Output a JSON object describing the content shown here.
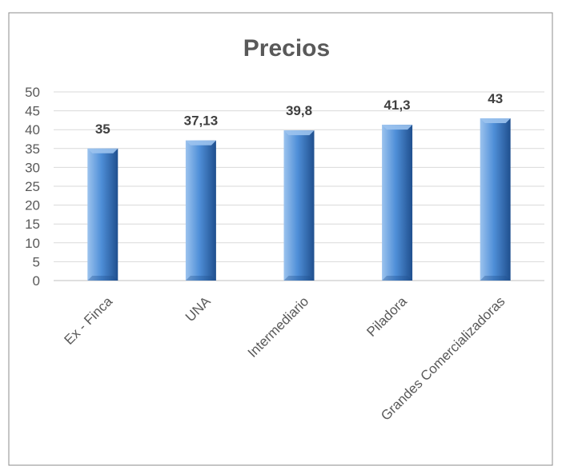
{
  "chart_data": {
    "type": "bar",
    "title": "Precios",
    "xlabel": "",
    "ylabel": "",
    "categories": [
      "Ex - Finca",
      "UNA",
      "Intermediario",
      "Piladora",
      "Grandes Comercializadoras"
    ],
    "values": [
      35,
      37.13,
      39.8,
      41.3,
      43
    ],
    "data_labels": [
      "35",
      "37,13",
      "39,8",
      "41,3",
      "43"
    ],
    "ylim": [
      0,
      50
    ],
    "yticks": [
      0,
      5,
      10,
      15,
      20,
      25,
      30,
      35,
      40,
      45,
      50
    ],
    "grid": true,
    "legend": "none",
    "colors": {
      "bar_light": "#9cc3ee",
      "bar_main": "#4f8fd8",
      "bar_dark": "#1f4f8e",
      "grid": "#d9d9d9",
      "axis": "#bfbfbf",
      "border": "#8c8c8c",
      "text": "#595959",
      "label": "#404040"
    }
  }
}
